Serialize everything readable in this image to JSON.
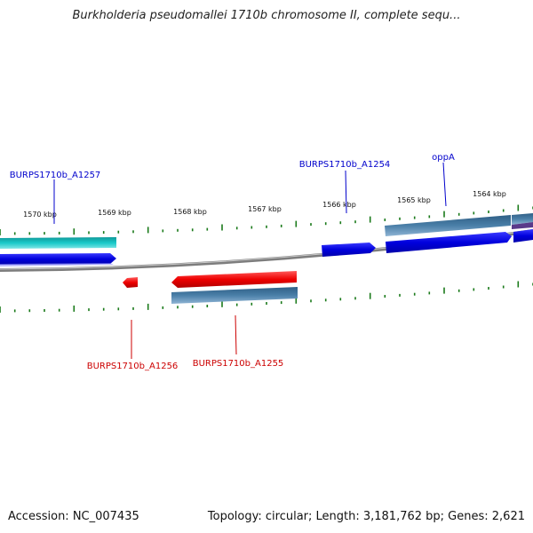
{
  "title": "Burkholderia pseudomallei 1710b chromosome II, complete sequ...",
  "footer": {
    "accession": "Accession: NC_007435",
    "summary": "Topology: circular; Length: 3,181,762 bp; Genes: 2,621"
  },
  "kbp_ticks": [
    "1570 kbp",
    "1569 kbp",
    "1568 kbp",
    "1567 kbp",
    "1566 kbp",
    "1565 kbp",
    "1564 kbp"
  ],
  "genes": [
    {
      "name": "BURPS1710b_A1257",
      "strand": "forward",
      "color": "#0000cc"
    },
    {
      "name": "BURPS1710b_A1254",
      "strand": "forward",
      "color": "#0000cc"
    },
    {
      "name": "oppA",
      "strand": "forward",
      "color": "#0000cc"
    },
    {
      "name": "BURPS1710b_A1256",
      "strand": "reverse",
      "color": "#cc0000"
    },
    {
      "name": "BURPS1710b_A1255",
      "strand": "reverse",
      "color": "#cc0000"
    }
  ],
  "colors": {
    "forward_gene": "#0000dd",
    "reverse_gene": "#ee0000",
    "cds_band": "#4a7fa8",
    "rna_band": "#19c9c9",
    "backbone": "#8a8a8a",
    "ticks": "#1a7a1a"
  }
}
